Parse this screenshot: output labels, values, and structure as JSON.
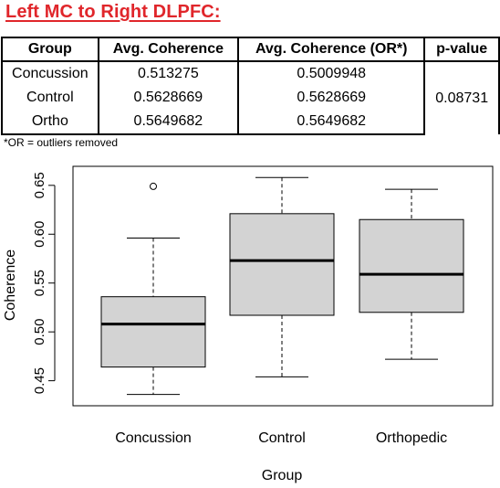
{
  "title": "Left MC to Right DLPFC:",
  "table": {
    "headers": [
      "Group",
      "Avg. Coherence",
      "Avg. Coherence (OR*)",
      "p-value"
    ],
    "rows": [
      {
        "group": "Concussion",
        "avg": "0.513275",
        "avg_or": "0.5009948"
      },
      {
        "group": "Control",
        "avg": "0.5628669",
        "avg_or": "0.5628669"
      },
      {
        "group": "Ortho",
        "avg": "0.5649682",
        "avg_or": "0.5649682"
      }
    ],
    "p_value": "0.08731"
  },
  "footnote": "*OR = outliers removed",
  "chart_data": {
    "type": "boxplot",
    "xlabel": "Group",
    "ylabel": "Coherence",
    "ylim": [
      0.43,
      0.662
    ],
    "yticks": [
      "0.45",
      "0.50",
      "0.55",
      "0.60",
      "0.65"
    ],
    "ytick_values": [
      0.45,
      0.5,
      0.55,
      0.6,
      0.65
    ],
    "categories": [
      "Concussion",
      "Control",
      "Orthopedic"
    ],
    "boxes": [
      {
        "name": "Concussion",
        "whisker_low": 0.436,
        "q1": 0.464,
        "median": 0.508,
        "q3": 0.536,
        "whisker_high": 0.596,
        "outliers": [
          0.649
        ]
      },
      {
        "name": "Control",
        "whisker_low": 0.454,
        "q1": 0.517,
        "median": 0.573,
        "q3": 0.621,
        "whisker_high": 0.658,
        "outliers": []
      },
      {
        "name": "Orthopedic",
        "whisker_low": 0.472,
        "q1": 0.52,
        "median": 0.559,
        "q3": 0.615,
        "whisker_high": 0.646,
        "outliers": []
      }
    ],
    "box_fill": "#d3d3d3",
    "grid": false
  }
}
